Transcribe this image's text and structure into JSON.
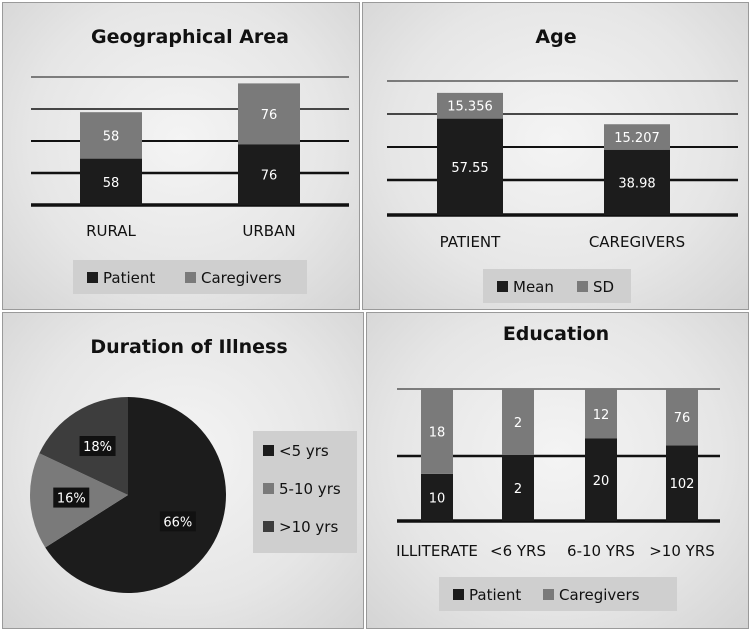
{
  "colors": {
    "primary": "#1c1c1c",
    "secondary": "#7a7a7a",
    "tertiary": "#3d3d3d",
    "grid": "#111111"
  },
  "chart_data": [
    {
      "type": "bar",
      "stacked": true,
      "title": "Geographical Area",
      "categories": [
        "RURAL",
        "URBAN"
      ],
      "series": [
        {
          "name": "Patient",
          "values": [
            58,
            76
          ]
        },
        {
          "name": "Caregivers",
          "values": [
            58,
            76
          ]
        }
      ],
      "ylim": [
        0,
        160
      ],
      "grid": true,
      "legend": "bottom"
    },
    {
      "type": "bar",
      "stacked": true,
      "title": "Age",
      "categories": [
        "PATIENT",
        "CAREGIVERS"
      ],
      "series": [
        {
          "name": "Mean",
          "values": [
            57.55,
            38.98
          ]
        },
        {
          "name": "SD",
          "values": [
            15.356,
            15.207
          ]
        }
      ],
      "ylim": [
        0,
        80
      ],
      "grid": true,
      "legend": "bottom"
    },
    {
      "type": "pie",
      "title": "Duration of Illness",
      "slices": [
        {
          "name": "<5 yrs",
          "value": 66,
          "label": "66%"
        },
        {
          "name": "5-10 yrs",
          "value": 16,
          "label": "16%"
        },
        {
          "name": ">10 yrs",
          "value": 18,
          "label": "18%"
        }
      ],
      "legend": "right"
    },
    {
      "type": "bar",
      "stacked": true,
      "title": "Education",
      "categories": [
        "ILLITERATE",
        "<6 YRS",
        "6-10 YRS",
        ">10 YRS"
      ],
      "series": [
        {
          "name": "Patient",
          "values": [
            10,
            2,
            20,
            102
          ]
        },
        {
          "name": "Caregivers",
          "values": [
            18,
            2,
            12,
            76
          ]
        }
      ],
      "normalized": true,
      "grid": true,
      "legend": "bottom"
    }
  ]
}
